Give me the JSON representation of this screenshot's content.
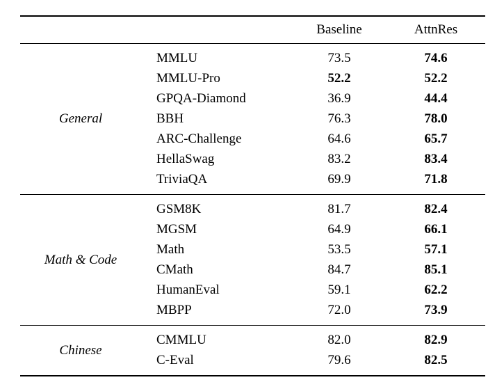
{
  "page": {
    "background": "#ffffff",
    "text_color": "#000000",
    "rule_color": "#000000"
  },
  "chart_data": {
    "type": "table",
    "column_headers": [
      "Baseline",
      "AttnRes"
    ],
    "row_label_style": "italic-group-left, benchmark-name-second-column",
    "bold_meaning": "best score per row shown in bold",
    "sections": [
      {
        "group": "General",
        "rows": [
          {
            "benchmark": "MMLU",
            "baseline": "73.5",
            "attnres": "74.6",
            "baseline_bold": false,
            "attnres_bold": true
          },
          {
            "benchmark": "MMLU-Pro",
            "baseline": "52.2",
            "attnres": "52.2",
            "baseline_bold": true,
            "attnres_bold": true
          },
          {
            "benchmark": "GPQA-Diamond",
            "baseline": "36.9",
            "attnres": "44.4",
            "baseline_bold": false,
            "attnres_bold": true
          },
          {
            "benchmark": "BBH",
            "baseline": "76.3",
            "attnres": "78.0",
            "baseline_bold": false,
            "attnres_bold": true
          },
          {
            "benchmark": "ARC-Challenge",
            "baseline": "64.6",
            "attnres": "65.7",
            "baseline_bold": false,
            "attnres_bold": true
          },
          {
            "benchmark": "HellaSwag",
            "baseline": "83.2",
            "attnres": "83.4",
            "baseline_bold": false,
            "attnres_bold": true
          },
          {
            "benchmark": "TriviaQA",
            "baseline": "69.9",
            "attnres": "71.8",
            "baseline_bold": false,
            "attnres_bold": true
          }
        ]
      },
      {
        "group": "Math & Code",
        "rows": [
          {
            "benchmark": "GSM8K",
            "baseline": "81.7",
            "attnres": "82.4",
            "baseline_bold": false,
            "attnres_bold": true
          },
          {
            "benchmark": "MGSM",
            "baseline": "64.9",
            "attnres": "66.1",
            "baseline_bold": false,
            "attnres_bold": true
          },
          {
            "benchmark": "Math",
            "baseline": "53.5",
            "attnres": "57.1",
            "baseline_bold": false,
            "attnres_bold": true
          },
          {
            "benchmark": "CMath",
            "baseline": "84.7",
            "attnres": "85.1",
            "baseline_bold": false,
            "attnres_bold": true
          },
          {
            "benchmark": "HumanEval",
            "baseline": "59.1",
            "attnres": "62.2",
            "baseline_bold": false,
            "attnres_bold": true
          },
          {
            "benchmark": "MBPP",
            "baseline": "72.0",
            "attnres": "73.9",
            "baseline_bold": false,
            "attnres_bold": true
          }
        ]
      },
      {
        "group": "Chinese",
        "rows": [
          {
            "benchmark": "CMMLU",
            "baseline": "82.0",
            "attnres": "82.9",
            "baseline_bold": false,
            "attnres_bold": true
          },
          {
            "benchmark": "C-Eval",
            "baseline": "79.6",
            "attnres": "82.5",
            "baseline_bold": false,
            "attnres_bold": true
          }
        ]
      }
    ]
  }
}
